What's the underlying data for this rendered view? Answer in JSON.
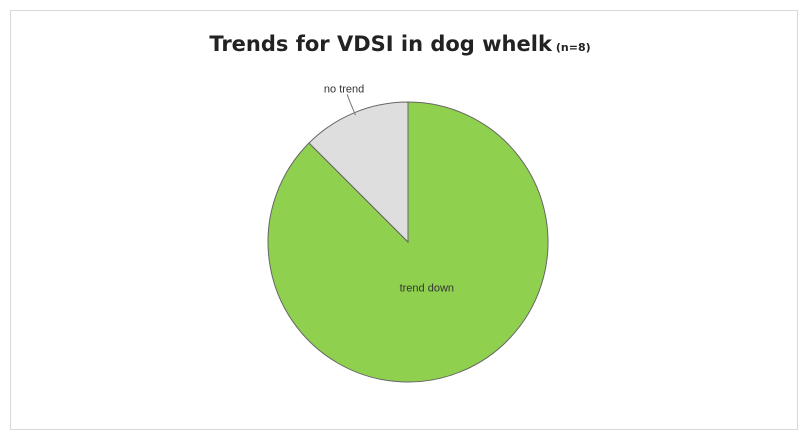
{
  "chart_data": {
    "type": "pie",
    "title": "Trends for VDSI in dog whelk",
    "subtitle": "(n=8)",
    "categories": [
      "trend down",
      "no trend"
    ],
    "values": [
      7,
      1
    ],
    "colors": [
      "#8fd14f",
      "#dedede"
    ],
    "stroke_color": "#666666",
    "legend": "none"
  }
}
